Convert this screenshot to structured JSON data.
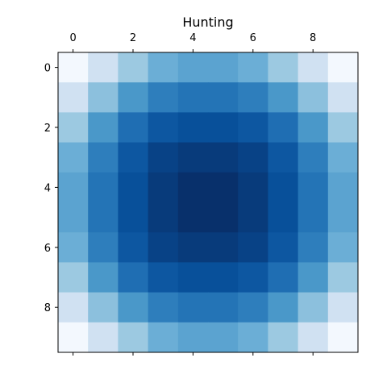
{
  "chart_data": {
    "type": "heatmap",
    "title": "Hunting",
    "xlabel": "",
    "ylabel": "",
    "x_tick_position": "top-and-bottom",
    "x_tick_labels_shown": "top",
    "x_ticks": [
      0,
      2,
      4,
      6,
      8
    ],
    "y_ticks": [
      0,
      2,
      4,
      6,
      8
    ],
    "rows": 10,
    "cols": 10,
    "colormap": "Blues",
    "vmin": 0,
    "vmax": 1,
    "grid": false,
    "values": [
      [
        0.02,
        0.2,
        0.38,
        0.5,
        0.55,
        0.55,
        0.5,
        0.38,
        0.2,
        0.02
      ],
      [
        0.2,
        0.42,
        0.6,
        0.7,
        0.74,
        0.74,
        0.7,
        0.6,
        0.42,
        0.2
      ],
      [
        0.38,
        0.6,
        0.76,
        0.85,
        0.88,
        0.88,
        0.85,
        0.76,
        0.6,
        0.38
      ],
      [
        0.5,
        0.7,
        0.85,
        0.93,
        0.96,
        0.96,
        0.93,
        0.85,
        0.7,
        0.5
      ],
      [
        0.55,
        0.74,
        0.88,
        0.96,
        1.0,
        1.0,
        0.96,
        0.88,
        0.74,
        0.55
      ],
      [
        0.55,
        0.74,
        0.88,
        0.96,
        1.0,
        1.0,
        0.96,
        0.88,
        0.74,
        0.55
      ],
      [
        0.5,
        0.7,
        0.85,
        0.93,
        0.96,
        0.96,
        0.93,
        0.85,
        0.7,
        0.5
      ],
      [
        0.38,
        0.6,
        0.76,
        0.85,
        0.88,
        0.88,
        0.85,
        0.76,
        0.6,
        0.38
      ],
      [
        0.2,
        0.42,
        0.6,
        0.7,
        0.74,
        0.74,
        0.7,
        0.6,
        0.42,
        0.2
      ],
      [
        0.02,
        0.2,
        0.38,
        0.5,
        0.55,
        0.55,
        0.5,
        0.38,
        0.2,
        0.02
      ]
    ]
  }
}
